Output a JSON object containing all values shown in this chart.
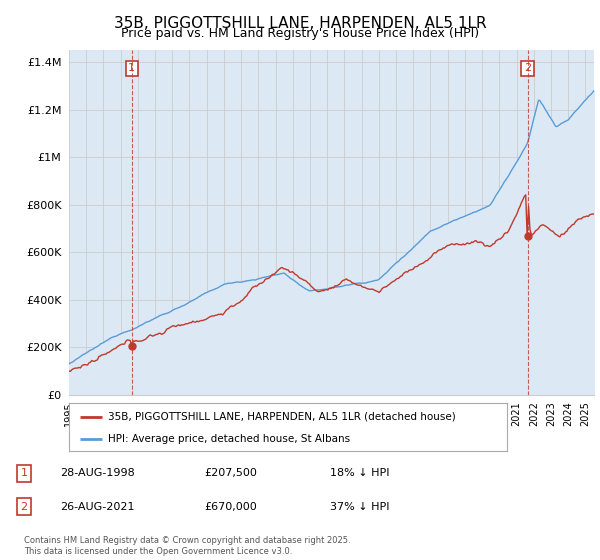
{
  "title": "35B, PIGGOTTSHILL LANE, HARPENDEN, AL5 1LR",
  "subtitle": "Price paid vs. HM Land Registry's House Price Index (HPI)",
  "ylabel_ticks": [
    "£0",
    "£200K",
    "£400K",
    "£600K",
    "£800K",
    "£1M",
    "£1.2M",
    "£1.4M"
  ],
  "ytick_values": [
    0,
    200000,
    400000,
    600000,
    800000,
    1000000,
    1200000,
    1400000
  ],
  "ylim": [
    0,
    1450000
  ],
  "xlim_start": 1995.0,
  "xlim_end": 2025.5,
  "xticks": [
    1995,
    1996,
    1997,
    1998,
    1999,
    2000,
    2001,
    2002,
    2003,
    2004,
    2005,
    2006,
    2007,
    2008,
    2009,
    2010,
    2011,
    2012,
    2013,
    2014,
    2015,
    2016,
    2017,
    2018,
    2019,
    2020,
    2021,
    2022,
    2023,
    2024,
    2025
  ],
  "hpi_color": "#5b9bd5",
  "hpi_fill_color": "#dce9f5",
  "price_color": "#c0392b",
  "marker1_date": 1998.65,
  "marker1_price": 207500,
  "marker2_date": 2021.65,
  "marker2_price": 670000,
  "vline1_x": 1998.65,
  "vline2_x": 2021.65,
  "legend_label_price": "35B, PIGGOTTSHILL LANE, HARPENDEN, AL5 1LR (detached house)",
  "legend_label_hpi": "HPI: Average price, detached house, St Albans",
  "annotation1_label": "1",
  "annotation2_label": "2",
  "footer": "Contains HM Land Registry data © Crown copyright and database right 2025.\nThis data is licensed under the Open Government Licence v3.0.",
  "background_color": "#ffffff",
  "grid_color": "#cccccc",
  "title_fontsize": 11,
  "subtitle_fontsize": 9
}
